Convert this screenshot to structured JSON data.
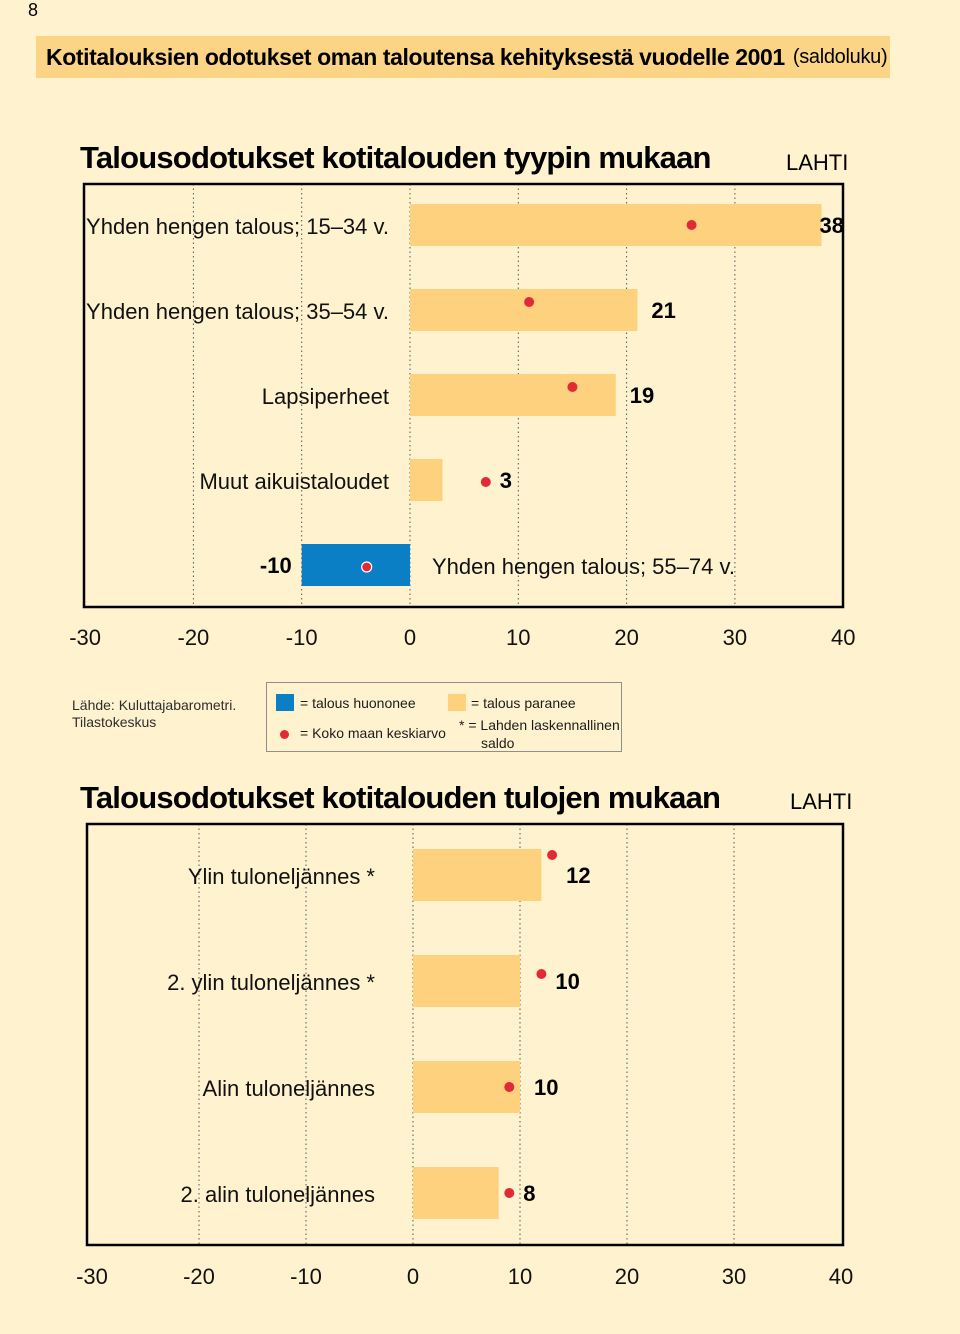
{
  "page_number": "8",
  "header": {
    "title": "Kotitalouksien odotukset oman taloutensa kehityksestä vuodelle 2001",
    "unit": "(saldoluku)"
  },
  "colors": {
    "background": "#fff3cf",
    "header_band": "#fbd585",
    "bar_positive": "#fdd17e",
    "bar_negative": "#0a7fc6",
    "marker": "#e02a35"
  },
  "source": {
    "line1": "Lähde: Kuluttajabarometri.",
    "line2": "Tilastokeskus"
  },
  "legend": {
    "negative_label": "= talous huononee",
    "positive_label": "= talous paranee",
    "marker_label": "= Koko maan keskiarvo",
    "asterisk_label_line1": "* = Lahden laskennallinen",
    "asterisk_label_line2": "saldo"
  },
  "chart_data": [
    {
      "type": "bar",
      "orientation": "horizontal",
      "title": "Talousodotukset kotitalouden tyypin mukaan",
      "region_label": "LAHTI",
      "xlim": [
        -30,
        40
      ],
      "xticks": [
        "-30",
        "-20",
        "-10",
        "0",
        "10",
        "20",
        "30",
        "40"
      ],
      "grid": "vertical dotted lines at every 10",
      "categories": [
        "Yhden hengen talous; 15–34 v.",
        "Yhden hengen talous; 35–54 v.",
        "Lapsiperheet",
        "Muut aikuistaloudet",
        "Yhden hengen talous; 55–74 v."
      ],
      "values": [
        38,
        21,
        19,
        3,
        -10
      ],
      "value_labels": [
        "38",
        "21",
        "19",
        "3",
        "-10"
      ],
      "national_average": [
        26,
        11,
        15,
        7,
        -4
      ]
    },
    {
      "type": "bar",
      "orientation": "horizontal",
      "title": "Talousodotukset kotitalouden tulojen mukaan",
      "region_label": "LAHTI",
      "xlim": [
        -30,
        40
      ],
      "xticks": [
        "-30",
        "-20",
        "-10",
        "0",
        "10",
        "20",
        "30",
        "40"
      ],
      "grid": "vertical dotted lines at every 10",
      "categories": [
        "Ylin tuloneljännes *",
        "2. ylin tuloneljännes *",
        "Alin tuloneljännes",
        "2. alin tuloneljännes"
      ],
      "values": [
        12,
        10,
        10,
        8
      ],
      "value_labels": [
        "12",
        "10",
        "10",
        "8"
      ],
      "national_average": [
        13,
        12,
        9,
        9
      ]
    }
  ]
}
